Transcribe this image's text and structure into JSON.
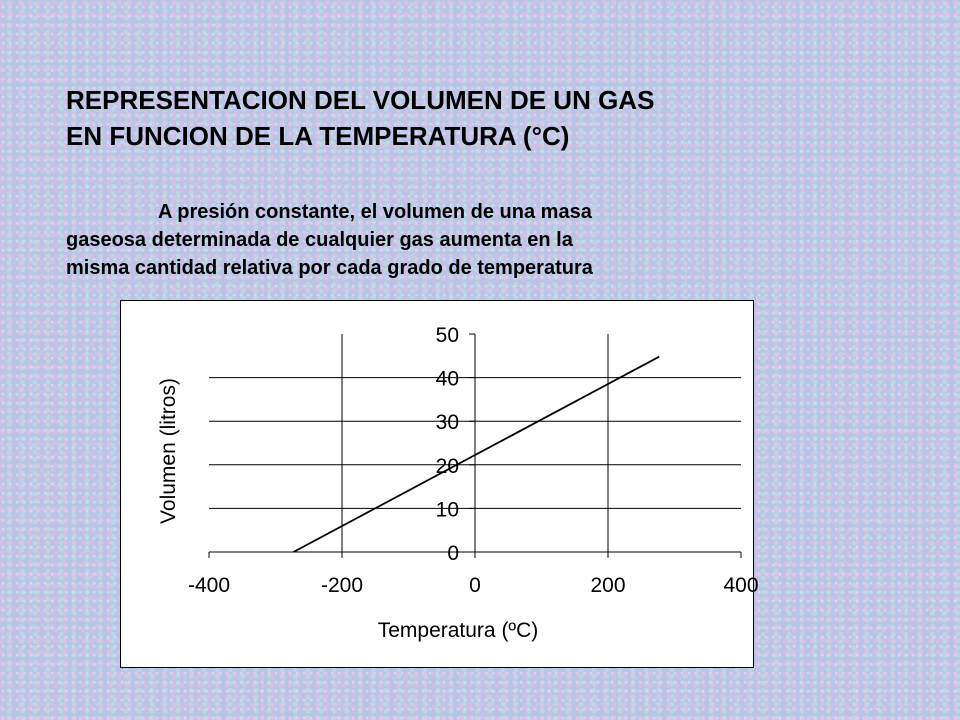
{
  "slide": {
    "title_line1": "REPRESENTACION DEL VOLUMEN DE UN GAS",
    "title_line2": "EN FUNCION DE LA TEMPERATURA (°C)",
    "body_line1": "A presión constante, el volumen de una masa",
    "body_line2": "gaseosa determinada de cualquier gas aumenta en la",
    "body_line3": "misma cantidad relativa por cada grado de temperatura"
  },
  "chart_data": {
    "type": "line",
    "title": "",
    "xlabel": "Temperatura (ºC)",
    "ylabel": "Volumen (litros)",
    "xlim": [
      -400,
      400
    ],
    "ylim": [
      0,
      50
    ],
    "xticks": [
      "-400",
      "-200",
      "0",
      "200",
      "400"
    ],
    "yticks": [
      "0",
      "10",
      "20",
      "30",
      "40",
      "50"
    ],
    "grid": true,
    "legend": "none",
    "series": [
      {
        "x": [
          -273,
          277
        ],
        "y": [
          0,
          44.8
        ]
      }
    ],
    "colors": {
      "line": "#000000",
      "grid": "#000000"
    }
  }
}
